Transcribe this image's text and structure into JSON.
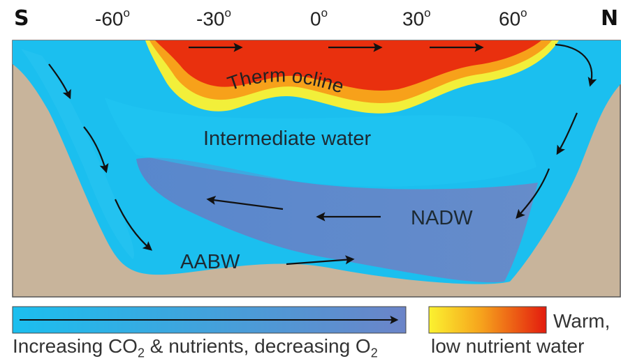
{
  "header": {
    "south": "S",
    "north": "N",
    "latitudes": [
      {
        "num": "-60",
        "deg": "o"
      },
      {
        "num": "-30",
        "deg": "o"
      },
      {
        "num": "0",
        "deg": "o"
      },
      {
        "num": "30",
        "deg": "o"
      },
      {
        "num": "60",
        "deg": "o"
      }
    ]
  },
  "labels": {
    "thermocline": "Therm ocline",
    "intermediate": "Intermediate water",
    "nadw": "NADW",
    "aabw": "AABW"
  },
  "legend": {
    "left_part1": "Increasing CO",
    "left_sub1": "2",
    "left_part2": " & nutrients, decreasing O",
    "left_sub2": "2",
    "right_line1": "Warm,",
    "right_line2": "low nutrient water"
  },
  "colors": {
    "land": "#c8b49b",
    "water": "#1bbfef",
    "deep_water": "#6b84c8",
    "warm": "#e8200b",
    "warm_mid": "#f7a11a",
    "warm_edge": "#fbe52a"
  }
}
